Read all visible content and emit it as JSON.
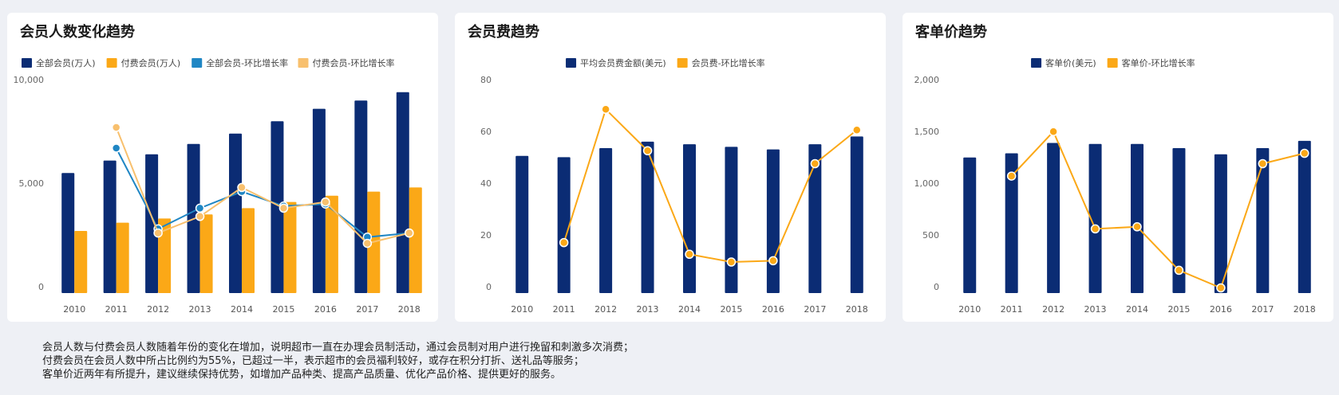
{
  "colors": {
    "navy": "#0b2c74",
    "orange": "#fba817",
    "blue_line": "#1f86c4",
    "light_orange": "#f8c06e"
  },
  "charts": [
    {
      "title": "会员人数变化趋势",
      "chart_data": {
        "type": "bar",
        "categories": [
          "2010",
          "2011",
          "2012",
          "2013",
          "2014",
          "2015",
          "2016",
          "2017",
          "2018"
        ],
        "ylim": [
          0,
          10000
        ],
        "yticks": [
          "0",
          "5,000",
          "10,000"
        ],
        "series": [
          {
            "name": "全部会员(万人)",
            "kind": "bar",
            "values": [
              5800,
              6400,
              6700,
              7200,
              7700,
              8300,
              8900,
              9300,
              9700
            ]
          },
          {
            "name": "付费会员(万人)",
            "kind": "bar",
            "values": [
              3000,
              3400,
              3600,
              3800,
              4100,
              4400,
              4700,
              4900,
              5100
            ]
          },
          {
            "name": "全部会员-环比增长率",
            "kind": "line",
            "values": [
              null,
              7000,
              3100,
              4100,
              4900,
              4200,
              4300,
              2700,
              2900
            ]
          },
          {
            "name": "付费会员-环比增长率",
            "kind": "line",
            "values": [
              null,
              8000,
              2900,
              3700,
              5100,
              4100,
              4400,
              2400,
              2900
            ]
          }
        ]
      }
    },
    {
      "title": "会员费趋势",
      "chart_data": {
        "type": "bar",
        "categories": [
          "2010",
          "2011",
          "2012",
          "2013",
          "2014",
          "2015",
          "2016",
          "2017",
          "2018"
        ],
        "ylim": [
          0,
          80
        ],
        "yticks": [
          "0",
          "20",
          "40",
          "60",
          "80"
        ],
        "series": [
          {
            "name": "平均会员费金额(美元)",
            "kind": "bar",
            "values": [
              53,
              52.5,
              56,
              58.5,
              57.5,
              56.5,
              55.5,
              57.5,
              60.5
            ]
          },
          {
            "name": "会员费-环比增长率",
            "kind": "line",
            "values": [
              null,
              19.5,
              71,
              55,
              15,
              12,
              12.5,
              50,
              63
            ]
          }
        ]
      }
    },
    {
      "title": "客单价趋势",
      "chart_data": {
        "type": "bar",
        "categories": [
          "2010",
          "2011",
          "2012",
          "2013",
          "2014",
          "2015",
          "2016",
          "2017",
          "2018"
        ],
        "ylim": [
          0,
          2000
        ],
        "yticks": [
          "0",
          "500",
          "1,000",
          "1,500",
          "2,000"
        ],
        "series": [
          {
            "name": "客单价(美元)",
            "kind": "bar",
            "values": [
              1310,
              1350,
              1450,
              1440,
              1440,
              1400,
              1340,
              1400,
              1470
            ]
          },
          {
            "name": "客单价-环比增长率",
            "kind": "line",
            "values": [
              null,
              1130,
              1560,
              620,
              640,
              220,
              50,
              1250,
              1350
            ]
          }
        ]
      }
    }
  ],
  "notes": [
    "会员人数与付费会员人数随着年份的变化在增加，说明超市一直在办理会员制活动，通过会员制对用户进行挽留和刺激多次消费；",
    "付费会员在会员人数中所占比例约为55%，已超过一半，表示超市的会员福利较好，或存在积分打折、送礼品等服务；",
    "客单价近两年有所提升，建议继续保持优势，如增加产品种类、提高产品质量、优化产品价格、提供更好的服务。"
  ]
}
